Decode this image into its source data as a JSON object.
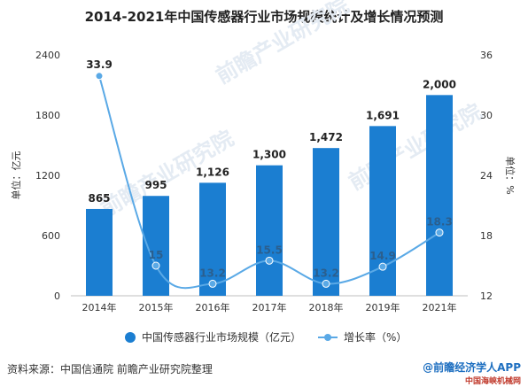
{
  "title": "2014-2021年中国传感器行业市场规模统计及增长情况预测",
  "footer": {
    "source": "资料来源：中国信通院 前瞻产业研究院整理",
    "brand": "@前瞻经济学人APP",
    "site": "中国海峡机械网"
  },
  "chart_data": {
    "type": "bar",
    "categories": [
      "2014年",
      "2015年",
      "2016年",
      "2017年",
      "2018年",
      "2019年",
      "2021年"
    ],
    "series": [
      {
        "name": "中国传感器行业市场规模（亿元）",
        "type": "bar",
        "axis": "left",
        "values": [
          865,
          995,
          1126,
          1300,
          1472,
          1691,
          2000
        ],
        "labels": [
          "865",
          "995",
          "1,126",
          "1,300",
          "1,472",
          "1,691",
          "2,000"
        ],
        "color": "#1b7ed1"
      },
      {
        "name": "增长率（%）",
        "type": "line",
        "axis": "right",
        "values": [
          33.9,
          15,
          13.2,
          15.5,
          13.2,
          14.9,
          18.3
        ],
        "labels": [
          "33.9",
          "15",
          "13.2",
          "15.5",
          "13.2",
          "14.9",
          "18.3"
        ],
        "color": "#5aa9e6"
      }
    ],
    "ylabel": "单位：亿元",
    "y2label": "单位：%",
    "ylim": [
      0,
      2400
    ],
    "yticks": [
      "0",
      "600",
      "1200",
      "1800",
      "2400"
    ],
    "y2lim": [
      12,
      36
    ],
    "y2ticks": [
      "12",
      "18",
      "24",
      "30",
      "36"
    ],
    "grid": false,
    "legend": "bottom",
    "watermark": "前瞻产业研究院"
  }
}
